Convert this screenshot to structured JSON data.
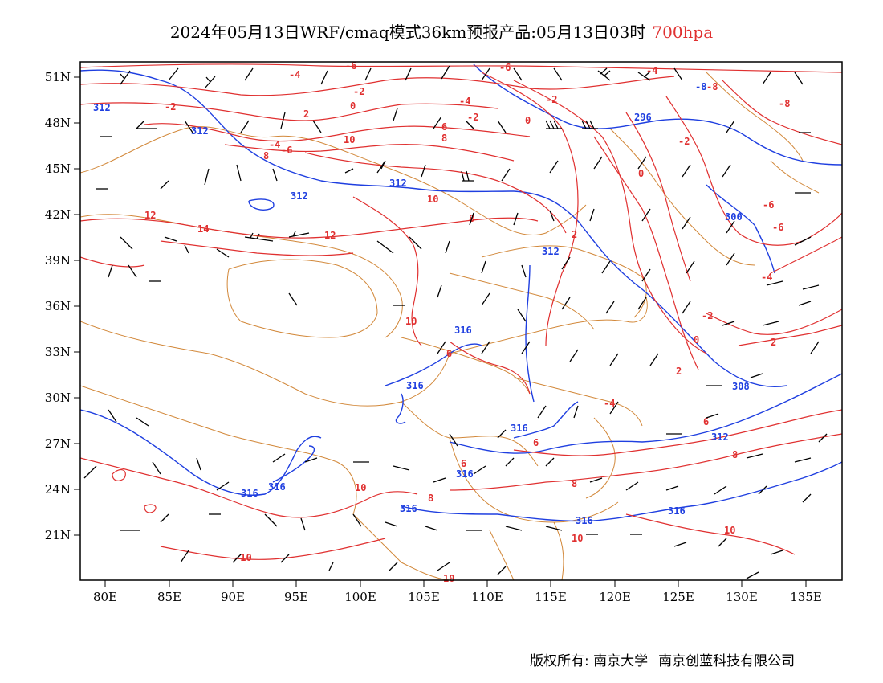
{
  "header": {
    "title": "2024年05月13日WRF/cmaq模式36km预报产品:05月13日03时",
    "level": "700hpa"
  },
  "axes": {
    "lat_labels": [
      "51N",
      "48N",
      "45N",
      "42N",
      "39N",
      "36N",
      "33N",
      "30N",
      "27N",
      "24N",
      "21N"
    ],
    "lon_labels": [
      "80E",
      "85E",
      "90E",
      "95E",
      "100E",
      "105E",
      "110E",
      "115E",
      "120E",
      "125E",
      "130E",
      "135E"
    ]
  },
  "map": {
    "temperature_contour_color": "#e03030",
    "height_contour_color": "#1f3fe0",
    "border_color": "#d2883a",
    "wind_barb_color": "#000000",
    "temperature_labels": [
      "-8",
      "-6",
      "-4",
      "-2",
      "0",
      "2",
      "6",
      "8",
      "10",
      "12",
      "14",
      "-10",
      "-6",
      "-8"
    ],
    "height_labels": [
      "312",
      "296",
      "300",
      "308",
      "312",
      "316"
    ]
  },
  "footer": {
    "copyright": "版权所有: 南京大学",
    "company": "南京创蓝科技有限公司"
  }
}
